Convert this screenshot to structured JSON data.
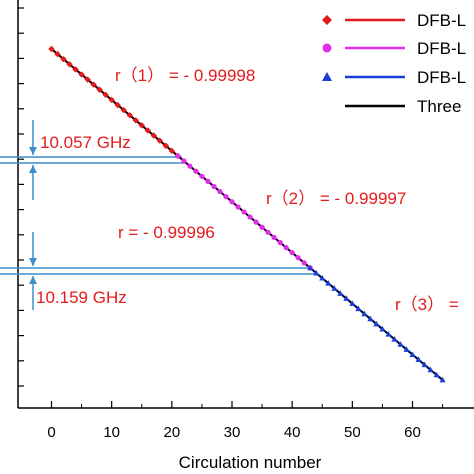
{
  "chart_data": {
    "type": "line",
    "xlabel": "Circulation number",
    "xlim": [
      -3,
      66
    ],
    "xticks": [
      0,
      10,
      20,
      30,
      40,
      50,
      60
    ],
    "series": [
      {
        "name": "DFB-L",
        "marker": "diamond",
        "color": "#e41a1c",
        "x": [
          0,
          1,
          2,
          3,
          4,
          5,
          6,
          7,
          8,
          9,
          10,
          11,
          12,
          13,
          14,
          15,
          16,
          17,
          18,
          19,
          20,
          21
        ]
      },
      {
        "name": "DFB-L",
        "marker": "circle",
        "color": "#e22ee8",
        "x": [
          21,
          22,
          23,
          24,
          25,
          26,
          27,
          28,
          29,
          30,
          31,
          32,
          33,
          34,
          35,
          36,
          37,
          38,
          39,
          40,
          41,
          42,
          43
        ]
      },
      {
        "name": "DFB-L",
        "marker": "triangle",
        "color": "#1a3ed6",
        "x": [
          43,
          44,
          45,
          46,
          47,
          48,
          49,
          50,
          51,
          52,
          53,
          54,
          55,
          56,
          57,
          58,
          59,
          60,
          61,
          62,
          63,
          64,
          65
        ]
      },
      {
        "name": "Three",
        "marker": "none",
        "color": "#000000",
        "x": [
          0,
          65
        ]
      }
    ],
    "legend_position": "top-right",
    "annotations": [
      {
        "text": "r（1） = - 0.99998",
        "color": "#e41a1c"
      },
      {
        "text": "r（2） = - 0.99997",
        "color": "#e41a1c"
      },
      {
        "text": "r = - 0.99996",
        "color": "#e41a1c"
      },
      {
        "text": "r（3） =",
        "color": "#e41a1c"
      },
      {
        "text": "10.057 GHz",
        "color": "#e41a1c"
      },
      {
        "text": "10.159 GHz",
        "color": "#e41a1c"
      }
    ],
    "annotation_color": "#3a8fc8"
  }
}
